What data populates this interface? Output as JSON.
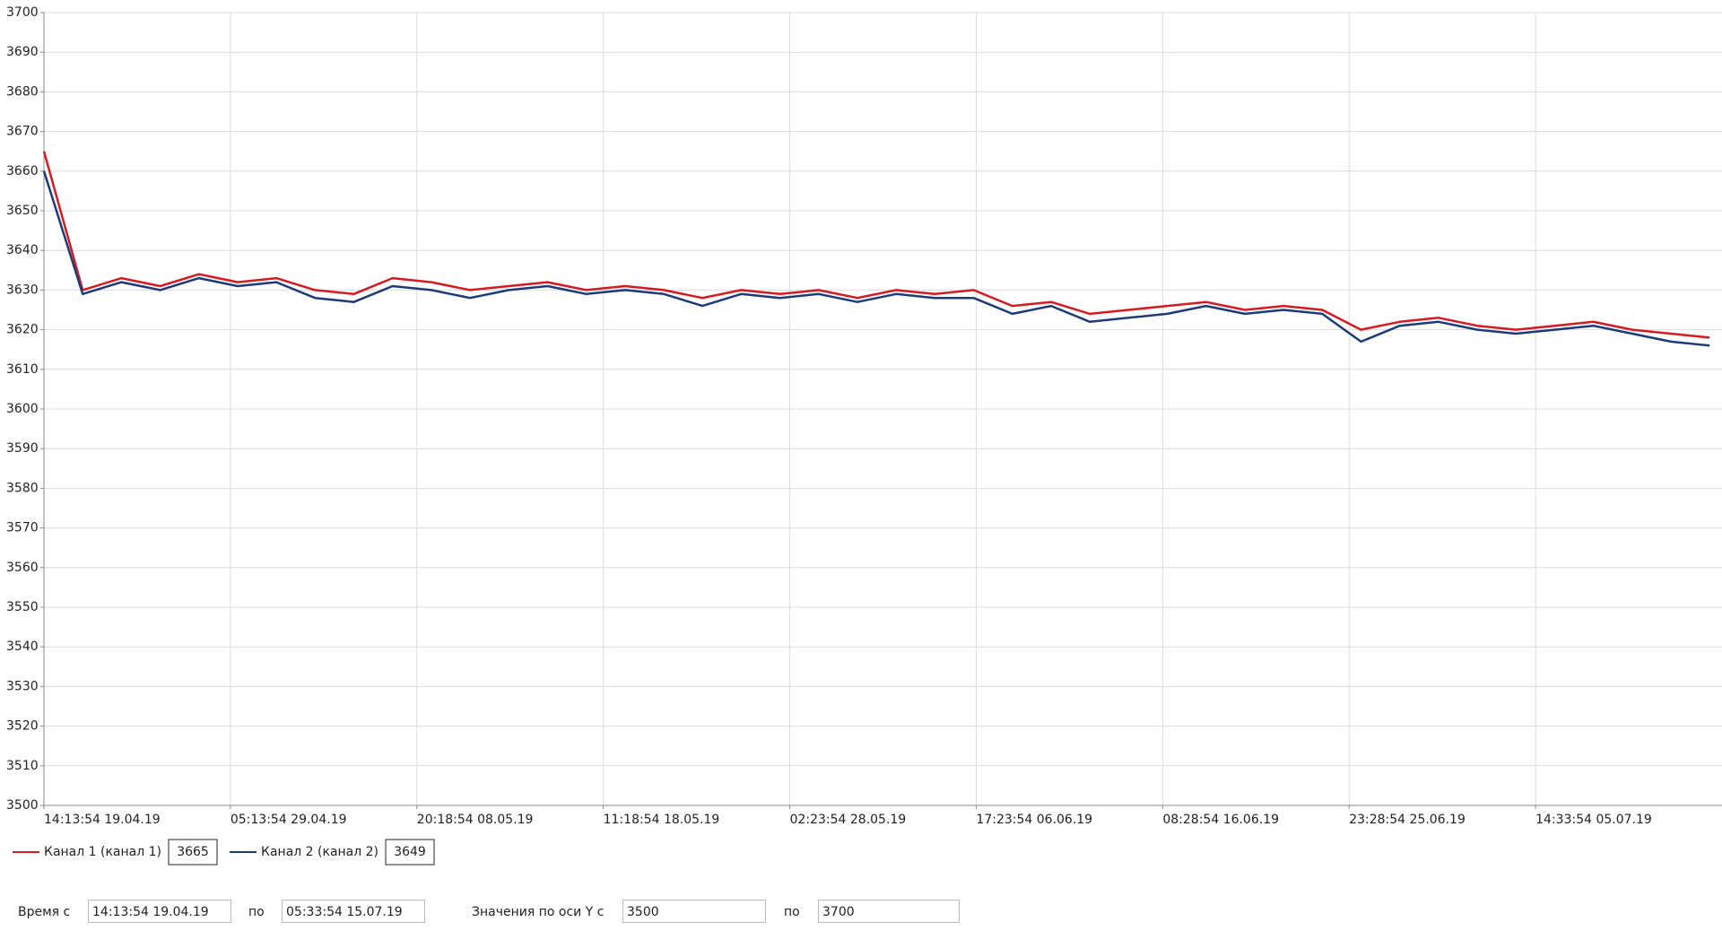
{
  "chart_data": {
    "type": "line",
    "x": [
      "2019-04-19T14:13:54",
      "2019-04-21T14:13:54",
      "2019-04-23T14:13:54",
      "2019-04-25T14:13:54",
      "2019-04-27T14:13:54",
      "2019-04-29T14:13:54",
      "2019-05-01T14:13:54",
      "2019-05-03T14:13:54",
      "2019-05-05T14:13:54",
      "2019-05-07T14:13:54",
      "2019-05-09T14:13:54",
      "2019-05-11T14:13:54",
      "2019-05-13T14:13:54",
      "2019-05-15T14:13:54",
      "2019-05-17T14:13:54",
      "2019-05-19T14:13:54",
      "2019-05-21T14:13:54",
      "2019-05-23T14:13:54",
      "2019-05-25T14:13:54",
      "2019-05-27T14:13:54",
      "2019-05-29T14:13:54",
      "2019-05-31T14:13:54",
      "2019-06-02T14:13:54",
      "2019-06-04T14:13:54",
      "2019-06-06T14:13:54",
      "2019-06-08T14:13:54",
      "2019-06-10T14:13:54",
      "2019-06-12T14:13:54",
      "2019-06-14T14:13:54",
      "2019-06-16T14:13:54",
      "2019-06-18T14:13:54",
      "2019-06-20T14:13:54",
      "2019-06-22T14:13:54",
      "2019-06-24T14:13:54",
      "2019-06-26T14:13:54",
      "2019-06-28T14:13:54",
      "2019-06-30T14:13:54",
      "2019-07-02T14:13:54",
      "2019-07-04T14:13:54",
      "2019-07-06T14:13:54",
      "2019-07-08T14:13:54",
      "2019-07-10T14:13:54",
      "2019-07-12T14:13:54",
      "2019-07-14T14:13:54"
    ],
    "series": [
      {
        "name": "Канал 1 (канал 1)",
        "color": "#d71920",
        "readout": "3665",
        "values": [
          3665,
          3630,
          3633,
          3631,
          3634,
          3632,
          3633,
          3630,
          3629,
          3633,
          3632,
          3630,
          3631,
          3632,
          3630,
          3631,
          3630,
          3628,
          3630,
          3629,
          3630,
          3628,
          3630,
          3629,
          3630,
          3626,
          3627,
          3624,
          3625,
          3626,
          3627,
          3625,
          3626,
          3625,
          3620,
          3622,
          3623,
          3621,
          3620,
          3621,
          3622,
          3620,
          3619,
          3618
        ]
      },
      {
        "name": "Канал 2 (канал 2)",
        "color": "#1c3b78",
        "readout": "3649",
        "values": [
          3660,
          3629,
          3632,
          3630,
          3633,
          3631,
          3632,
          3628,
          3627,
          3631,
          3630,
          3628,
          3630,
          3631,
          3629,
          3630,
          3629,
          3626,
          3629,
          3628,
          3629,
          3627,
          3629,
          3628,
          3628,
          3624,
          3626,
          3622,
          3623,
          3624,
          3626,
          3624,
          3625,
          3624,
          3617,
          3621,
          3622,
          3620,
          3619,
          3620,
          3621,
          3619,
          3617,
          3616
        ]
      }
    ],
    "xlim": [
      "2019-04-19T14:13:54",
      "2019-07-15T05:33:54"
    ],
    "xticks": [
      {
        "value": "2019-04-19T14:13:54",
        "label": "14:13:54 19.04.19"
      },
      {
        "value": "2019-04-29T05:13:54",
        "label": "05:13:54 29.04.19"
      },
      {
        "value": "2019-05-08T20:18:54",
        "label": "20:18:54 08.05.19"
      },
      {
        "value": "2019-05-18T11:18:54",
        "label": "11:18:54 18.05.19"
      },
      {
        "value": "2019-05-28T02:23:54",
        "label": "02:23:54 28.05.19"
      },
      {
        "value": "2019-06-06T17:23:54",
        "label": "17:23:54 06.06.19"
      },
      {
        "value": "2019-06-16T08:28:54",
        "label": "08:28:54 16.06.19"
      },
      {
        "value": "2019-06-25T23:28:54",
        "label": "23:28:54 25.06.19"
      },
      {
        "value": "2019-07-05T14:33:54",
        "label": "14:33:54 05.07.19"
      }
    ],
    "ylim": [
      3500,
      3700
    ],
    "yticks": [
      3500,
      3510,
      3520,
      3530,
      3540,
      3550,
      3560,
      3570,
      3580,
      3590,
      3600,
      3610,
      3620,
      3630,
      3640,
      3650,
      3660,
      3670,
      3680,
      3690,
      3700
    ],
    "grid": true
  },
  "controls": {
    "time_label": "Время с",
    "time_from": "14:13:54 19.04.19",
    "to_label": "по",
    "time_to": "05:33:54 15.07.19",
    "y_label": "Значения по оси Y с",
    "y_to_label": "по"
  }
}
